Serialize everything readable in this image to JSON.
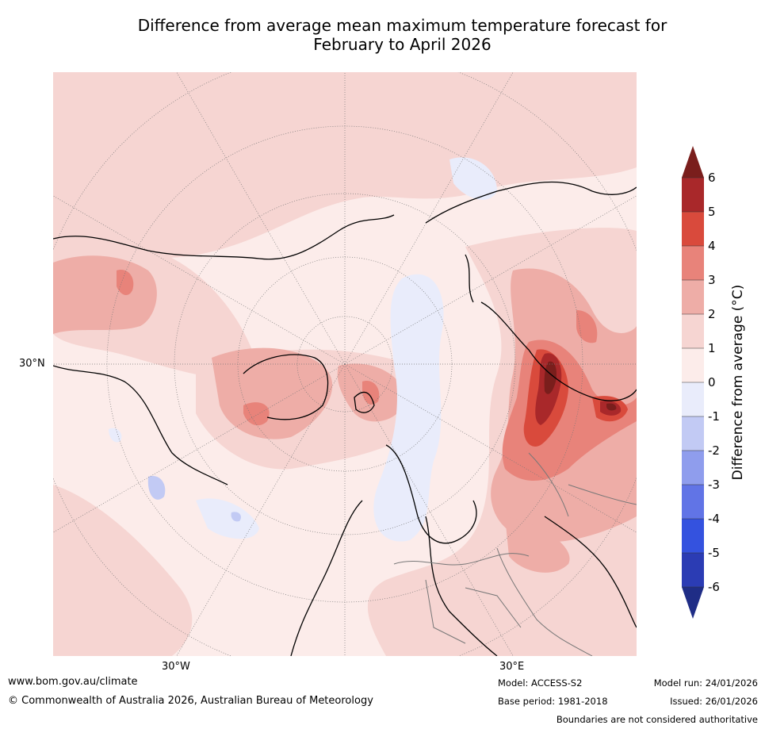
{
  "title_line1": "Difference from average mean maximum temperature forecast for",
  "title_line2": "February to April 2026",
  "axis_labels": {
    "lat": "30°N",
    "lon_west": "30°W",
    "lon_east": "30°E"
  },
  "colorbar": {
    "label": "Difference from average (°C)",
    "ticks": [
      "6",
      "5",
      "4",
      "3",
      "2",
      "1",
      "0",
      "-1",
      "-2",
      "-3",
      "-4",
      "-5",
      "-6"
    ],
    "colors": [
      "#a9282a",
      "#d94a3c",
      "#e8837a",
      "#eeada7",
      "#f6d5d2",
      "#fcecea",
      "#e9ecfb",
      "#c2caf4",
      "#8f9ded",
      "#6174e6",
      "#3452df",
      "#2b3cb4"
    ],
    "over_color": "#7a1e1c",
    "under_color": "#1f2d86"
  },
  "footer": {
    "website": "www.bom.gov.au/climate",
    "copyright": "© Commonwealth of Australia 2026, Australian Bureau of Meteorology",
    "model": "Model: ACCESS-S2",
    "base_period": "Base period: 1981-2018",
    "model_run": "Model run: 24/01/2026",
    "issued": "Issued: 26/01/2026",
    "disclaimer": "Boundaries are not considered authoritative"
  }
}
